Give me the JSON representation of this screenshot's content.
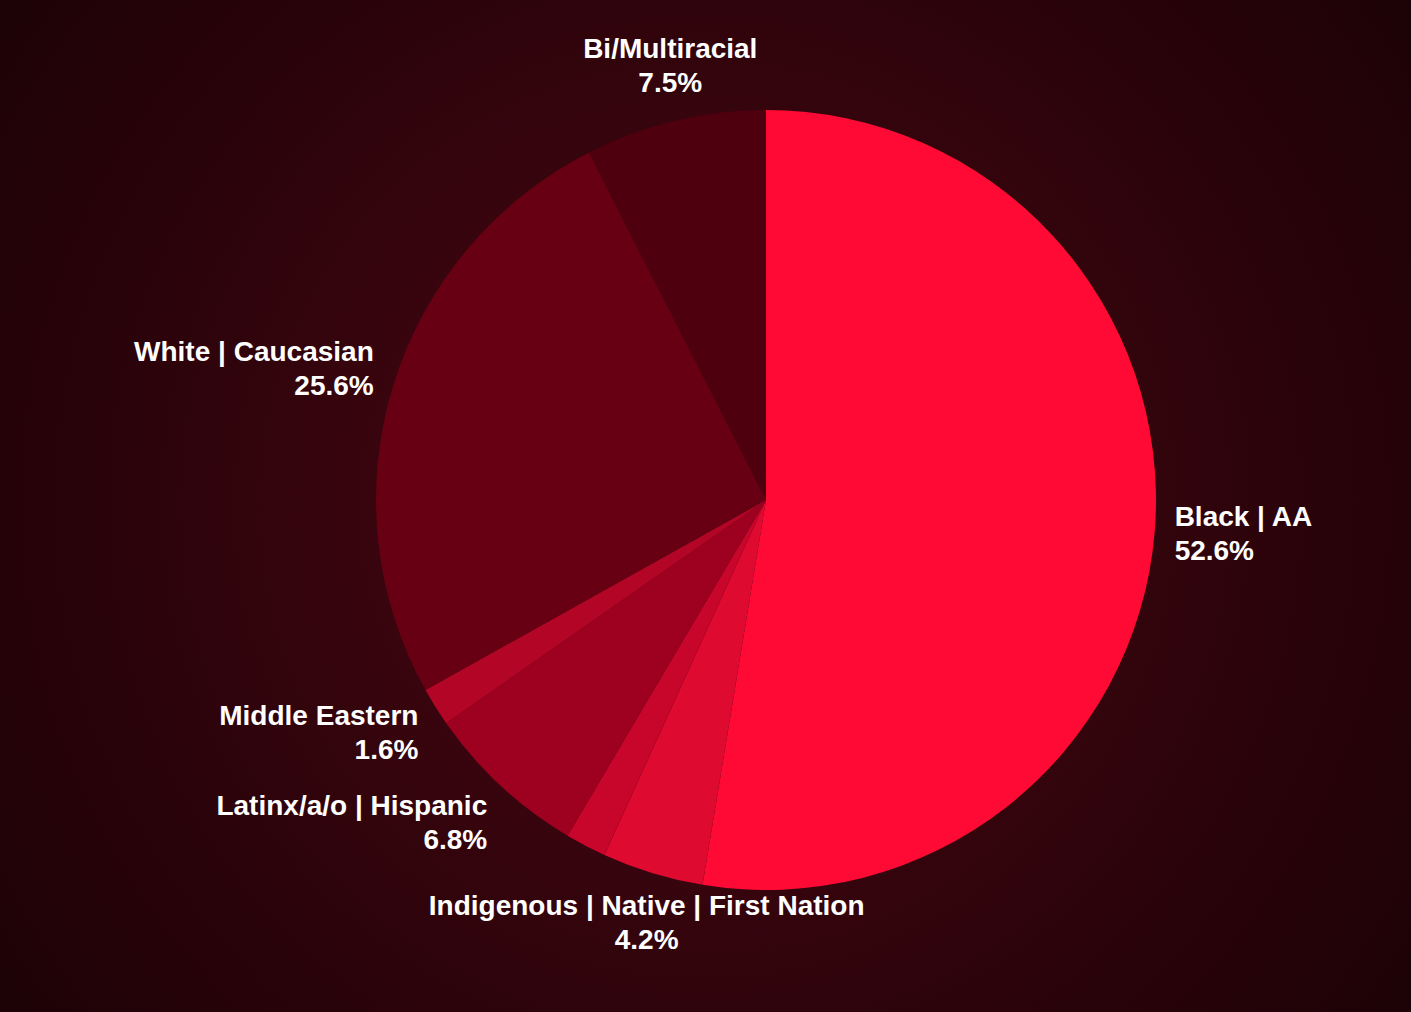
{
  "chart_data": {
    "type": "pie",
    "categories": [
      "Black | AA",
      "Indigenous | Native | First Nation",
      null,
      "Latinx/a/o | Hispanic",
      "Middle Eastern",
      "White | Caucasian",
      "Bi/Multiracial"
    ],
    "values": [
      52.6,
      4.2,
      1.7,
      6.8,
      1.6,
      25.6,
      7.5
    ],
    "value_labels": [
      "52.6%",
      "4.2%",
      null,
      "6.8%",
      "1.6%",
      "25.6%",
      "7.5%"
    ],
    "colors": [
      "#ff0a35",
      "#de0a30",
      "#c8052a",
      "#9e001f",
      "#b30526",
      "#660012",
      "#4e000f"
    ],
    "data_labels": true
  }
}
